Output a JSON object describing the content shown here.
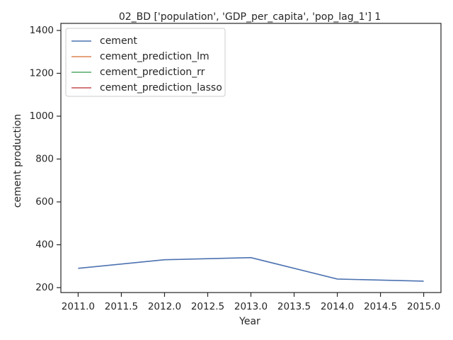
{
  "chart_data": {
    "type": "line",
    "title": "02_BD ['population', 'GDP_per_capita', 'pop_lag_1'] 1",
    "x_label": "Year",
    "y_label": "cement production",
    "x": [
      2011,
      2012,
      2013,
      2014,
      2015
    ],
    "series": [
      {
        "name": "cement",
        "color": "#4c72b0",
        "values": [
          290,
          330,
          340,
          240,
          230
        ]
      },
      {
        "name": "cement_prediction_lm",
        "color": "#dd8452",
        "values": [
          null,
          null,
          null,
          null,
          null
        ]
      },
      {
        "name": "cement_prediction_rr",
        "color": "#55a868",
        "values": [
          null,
          null,
          null,
          null,
          null
        ]
      },
      {
        "name": "cement_prediction_lasso",
        "color": "#c44e52",
        "values": [
          null,
          null,
          null,
          null,
          null
        ]
      }
    ],
    "xlim": [
      2010.8,
      2015.2
    ],
    "xticks": [
      {
        "value": 2011,
        "label": "2011.0"
      },
      2011.5,
      {
        "value": 2012,
        "label": "2012.0"
      },
      2012.5,
      {
        "value": 2013,
        "label": "2013.0"
      },
      2013.5,
      {
        "value": 2014,
        "label": "2014.0"
      },
      2014.5,
      {
        "value": 2015,
        "label": "2015.0"
      }
    ],
    "ylim": [
      177,
      1433
    ],
    "yticks": [
      200,
      400,
      600,
      800,
      1000,
      1200,
      1400
    ],
    "legend": "upper left",
    "grid": false
  }
}
